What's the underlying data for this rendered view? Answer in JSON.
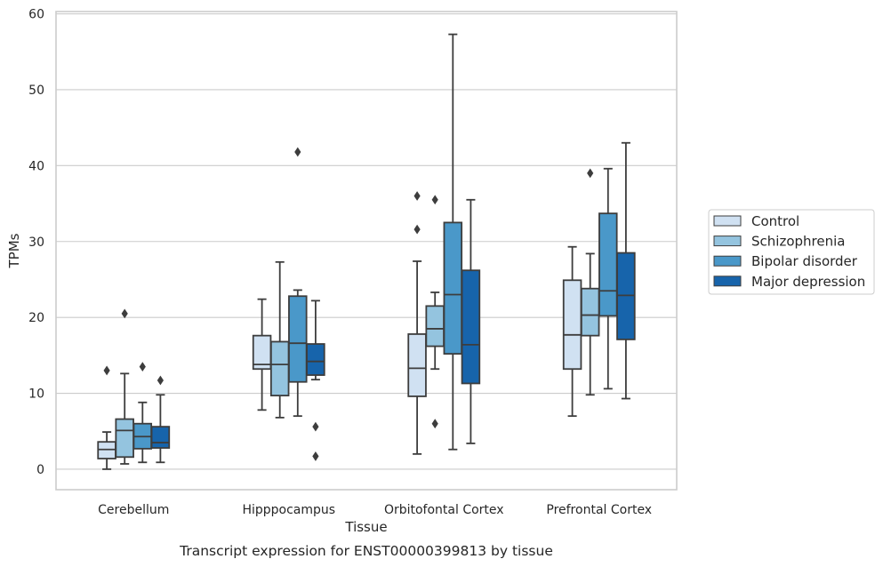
{
  "chart_data": {
    "type": "box",
    "title": "",
    "caption": "Transcript expression for ENST00000399813 by tissue",
    "xlabel": "Tissue",
    "ylabel": "TPMs",
    "ylim": [
      -2.7,
      60.3
    ],
    "yticks": [
      0,
      10,
      20,
      30,
      40,
      50,
      60
    ],
    "grid": "horizontal",
    "legend_position": "right",
    "categories": [
      "Cerebellum",
      "Hipppocampus",
      "Orbitofontal Cortex",
      "Prefrontal Cortex"
    ],
    "series": [
      {
        "name": "Control",
        "color": "#d0e1f2",
        "boxes": [
          {
            "whislo": 0.0,
            "q1": 1.4,
            "med": 2.6,
            "q3": 3.6,
            "whishi": 4.9,
            "fliers": [
              13.0
            ]
          },
          {
            "whislo": 7.8,
            "q1": 13.2,
            "med": 13.8,
            "q3": 17.6,
            "whishi": 22.4,
            "fliers": []
          },
          {
            "whislo": 2.0,
            "q1": 9.6,
            "med": 13.3,
            "q3": 17.8,
            "whishi": 27.4,
            "fliers": [
              31.6,
              36.0
            ]
          },
          {
            "whislo": 7.0,
            "q1": 13.2,
            "med": 17.7,
            "q3": 24.9,
            "whishi": 29.3,
            "fliers": []
          }
        ]
      },
      {
        "name": "Schizophrenia",
        "color": "#94c4df",
        "boxes": [
          {
            "whislo": 0.7,
            "q1": 1.6,
            "med": 5.1,
            "q3": 6.6,
            "whishi": 12.6,
            "fliers": [
              20.5
            ]
          },
          {
            "whislo": 6.8,
            "q1": 9.7,
            "med": 13.8,
            "q3": 16.8,
            "whishi": 27.3,
            "fliers": []
          },
          {
            "whislo": 13.2,
            "q1": 16.2,
            "med": 18.5,
            "q3": 21.5,
            "whishi": 23.3,
            "fliers": [
              6.0,
              35.5
            ]
          },
          {
            "whislo": 9.8,
            "q1": 17.6,
            "med": 20.3,
            "q3": 23.8,
            "whishi": 28.4,
            "fliers": [
              39.0
            ]
          }
        ]
      },
      {
        "name": "Bipolar disorder",
        "color": "#4a98c9",
        "boxes": [
          {
            "whislo": 0.9,
            "q1": 2.7,
            "med": 4.3,
            "q3": 6.0,
            "whishi": 8.8,
            "fliers": [
              13.5
            ]
          },
          {
            "whislo": 7.0,
            "q1": 11.5,
            "med": 16.6,
            "q3": 22.8,
            "whishi": 23.6,
            "fliers": [
              41.8
            ]
          },
          {
            "whislo": 2.6,
            "q1": 15.2,
            "med": 23.0,
            "q3": 32.5,
            "whishi": 57.3,
            "fliers": []
          },
          {
            "whislo": 10.6,
            "q1": 20.2,
            "med": 23.5,
            "q3": 33.7,
            "whishi": 39.6,
            "fliers": []
          }
        ]
      },
      {
        "name": "Major depression",
        "color": "#1764ab",
        "boxes": [
          {
            "whislo": 0.9,
            "q1": 2.8,
            "med": 3.5,
            "q3": 5.6,
            "whishi": 9.8,
            "fliers": [
              11.7
            ]
          },
          {
            "whislo": 11.8,
            "q1": 12.4,
            "med": 14.2,
            "q3": 16.5,
            "whishi": 22.2,
            "fliers": [
              1.7,
              5.6
            ]
          },
          {
            "whislo": 3.4,
            "q1": 11.3,
            "med": 16.4,
            "q3": 26.2,
            "whishi": 35.5,
            "fliers": []
          },
          {
            "whislo": 9.3,
            "q1": 17.1,
            "med": 22.9,
            "q3": 28.5,
            "whishi": 43.0,
            "fliers": []
          }
        ]
      }
    ]
  }
}
